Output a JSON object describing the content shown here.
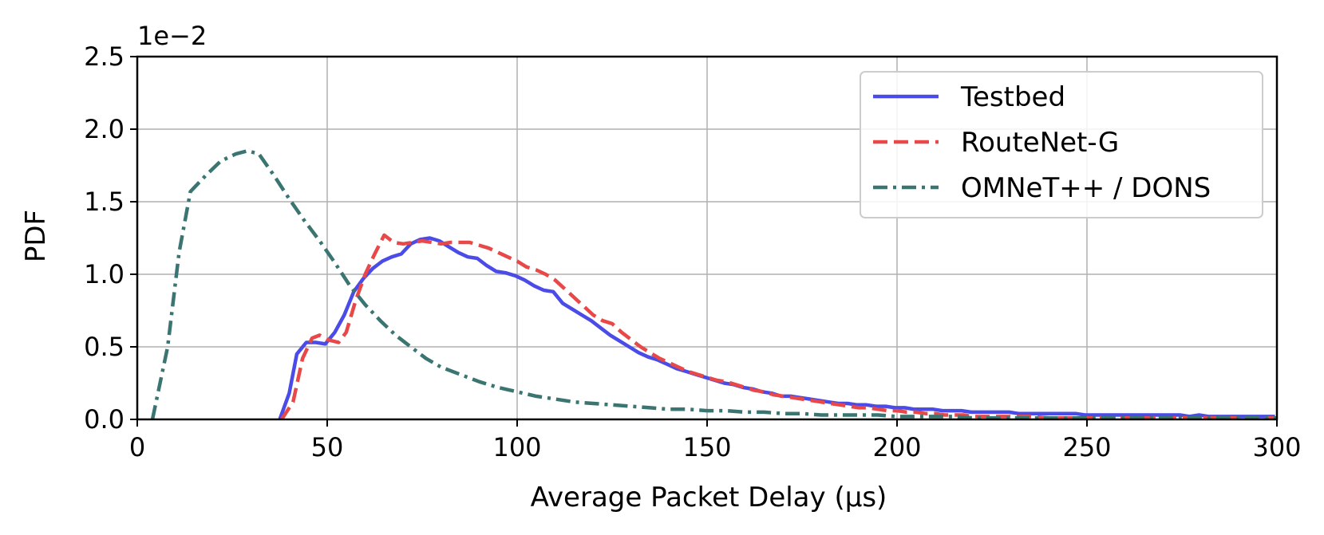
{
  "chart_data": {
    "type": "line",
    "title": "",
    "xlabel": "Average Packet Delay (µs)",
    "ylabel": "PDF",
    "y_offset_label": "1e−2",
    "xlim": [
      0,
      300
    ],
    "ylim": [
      0,
      2.5
    ],
    "xticks": [
      0,
      50,
      100,
      150,
      200,
      250,
      300
    ],
    "yticks": [
      0.0,
      0.5,
      1.0,
      1.5,
      2.0,
      2.5
    ],
    "xtick_labels": [
      "0",
      "50",
      "100",
      "150",
      "200",
      "250",
      "300"
    ],
    "ytick_labels": [
      "0.0",
      "0.5",
      "1.0",
      "1.5",
      "2.0",
      "2.5"
    ],
    "grid": true,
    "legend_position": "top-right",
    "series": [
      {
        "name": "Testbed",
        "color": "#4b4be8",
        "style": "solid",
        "points": [
          [
            37.5,
            0.0
          ],
          [
            40,
            0.18
          ],
          [
            42,
            0.45
          ],
          [
            44.5,
            0.53
          ],
          [
            47,
            0.53
          ],
          [
            49.5,
            0.52
          ],
          [
            52,
            0.6
          ],
          [
            54.5,
            0.72
          ],
          [
            57,
            0.88
          ],
          [
            59.5,
            0.97
          ],
          [
            62,
            1.04
          ],
          [
            64.5,
            1.09
          ],
          [
            67,
            1.12
          ],
          [
            69.5,
            1.14
          ],
          [
            72,
            1.21
          ],
          [
            74.5,
            1.24
          ],
          [
            77,
            1.25
          ],
          [
            79.5,
            1.23
          ],
          [
            82,
            1.19
          ],
          [
            84.5,
            1.15
          ],
          [
            87,
            1.12
          ],
          [
            89.5,
            1.11
          ],
          [
            92,
            1.06
          ],
          [
            94.5,
            1.02
          ],
          [
            97,
            1.01
          ],
          [
            99.5,
            0.99
          ],
          [
            102,
            0.96
          ],
          [
            104.5,
            0.92
          ],
          [
            107,
            0.89
          ],
          [
            109.5,
            0.88
          ],
          [
            112,
            0.8
          ],
          [
            114.5,
            0.76
          ],
          [
            117,
            0.72
          ],
          [
            119.5,
            0.68
          ],
          [
            122,
            0.63
          ],
          [
            124.5,
            0.58
          ],
          [
            127,
            0.54
          ],
          [
            129.5,
            0.5
          ],
          [
            132,
            0.46
          ],
          [
            134.5,
            0.43
          ],
          [
            137,
            0.41
          ],
          [
            139.5,
            0.38
          ],
          [
            142,
            0.35
          ],
          [
            144.5,
            0.33
          ],
          [
            147,
            0.31
          ],
          [
            149.5,
            0.29
          ],
          [
            152,
            0.27
          ],
          [
            154.5,
            0.25
          ],
          [
            157,
            0.24
          ],
          [
            159.5,
            0.22
          ],
          [
            162,
            0.21
          ],
          [
            164.5,
            0.19
          ],
          [
            167,
            0.18
          ],
          [
            169.5,
            0.16
          ],
          [
            172,
            0.16
          ],
          [
            174.5,
            0.15
          ],
          [
            177,
            0.14
          ],
          [
            179.5,
            0.13
          ],
          [
            182,
            0.12
          ],
          [
            184.5,
            0.11
          ],
          [
            187,
            0.11
          ],
          [
            189.5,
            0.1
          ],
          [
            192,
            0.1
          ],
          [
            194.5,
            0.09
          ],
          [
            197,
            0.09
          ],
          [
            199.5,
            0.08
          ],
          [
            202,
            0.08
          ],
          [
            204.5,
            0.07
          ],
          [
            207,
            0.07
          ],
          [
            209.5,
            0.07
          ],
          [
            212,
            0.06
          ],
          [
            214.5,
            0.06
          ],
          [
            217,
            0.06
          ],
          [
            219.5,
            0.05
          ],
          [
            222,
            0.05
          ],
          [
            224.5,
            0.05
          ],
          [
            227,
            0.05
          ],
          [
            229.5,
            0.05
          ],
          [
            232,
            0.04
          ],
          [
            234.5,
            0.04
          ],
          [
            237,
            0.04
          ],
          [
            239.5,
            0.04
          ],
          [
            242,
            0.04
          ],
          [
            244.5,
            0.04
          ],
          [
            247,
            0.04
          ],
          [
            249.5,
            0.03
          ],
          [
            252,
            0.03
          ],
          [
            254.5,
            0.03
          ],
          [
            257,
            0.03
          ],
          [
            259.5,
            0.03
          ],
          [
            262,
            0.03
          ],
          [
            264.5,
            0.03
          ],
          [
            267,
            0.03
          ],
          [
            269.5,
            0.03
          ],
          [
            272,
            0.03
          ],
          [
            274.5,
            0.03
          ],
          [
            277,
            0.02
          ],
          [
            279.5,
            0.03
          ],
          [
            282,
            0.02
          ],
          [
            284.5,
            0.02
          ],
          [
            287,
            0.02
          ],
          [
            289.5,
            0.02
          ],
          [
            292,
            0.02
          ],
          [
            294.5,
            0.02
          ],
          [
            297,
            0.02
          ],
          [
            299.5,
            0.02
          ]
        ]
      },
      {
        "name": "RouteNet-G",
        "color": "#e84848",
        "style": "dashed",
        "points": [
          [
            38,
            0.0
          ],
          [
            41,
            0.12
          ],
          [
            43.5,
            0.42
          ],
          [
            46,
            0.56
          ],
          [
            48,
            0.58
          ],
          [
            50,
            0.55
          ],
          [
            53,
            0.53
          ],
          [
            55,
            0.6
          ],
          [
            57.5,
            0.82
          ],
          [
            60,
            1.0
          ],
          [
            62.5,
            1.14
          ],
          [
            65,
            1.27
          ],
          [
            67.5,
            1.22
          ],
          [
            70,
            1.21
          ],
          [
            72.5,
            1.22
          ],
          [
            75,
            1.23
          ],
          [
            77.5,
            1.22
          ],
          [
            80,
            1.21
          ],
          [
            82.5,
            1.22
          ],
          [
            85,
            1.22
          ],
          [
            87.5,
            1.22
          ],
          [
            90,
            1.2
          ],
          [
            92.5,
            1.18
          ],
          [
            95,
            1.15
          ],
          [
            97.5,
            1.12
          ],
          [
            100,
            1.09
          ],
          [
            102.5,
            1.05
          ],
          [
            105,
            1.03
          ],
          [
            107.5,
            1.0
          ],
          [
            110,
            0.96
          ],
          [
            112.5,
            0.9
          ],
          [
            115,
            0.84
          ],
          [
            117.5,
            0.78
          ],
          [
            120,
            0.72
          ],
          [
            122.5,
            0.68
          ],
          [
            125,
            0.66
          ],
          [
            127.5,
            0.6
          ],
          [
            130,
            0.55
          ],
          [
            132.5,
            0.5
          ],
          [
            135,
            0.46
          ],
          [
            137.5,
            0.42
          ],
          [
            140,
            0.39
          ],
          [
            142.5,
            0.36
          ],
          [
            145,
            0.33
          ],
          [
            147.5,
            0.31
          ],
          [
            150,
            0.29
          ],
          [
            152.5,
            0.27
          ],
          [
            155,
            0.26
          ],
          [
            157.5,
            0.24
          ],
          [
            160,
            0.22
          ],
          [
            162.5,
            0.2
          ],
          [
            165,
            0.19
          ],
          [
            167.5,
            0.17
          ],
          [
            170,
            0.16
          ],
          [
            172.5,
            0.15
          ],
          [
            175,
            0.14
          ],
          [
            177.5,
            0.13
          ],
          [
            180,
            0.12
          ],
          [
            182.5,
            0.11
          ],
          [
            185,
            0.1
          ],
          [
            187.5,
            0.09
          ],
          [
            190,
            0.08
          ],
          [
            192.5,
            0.08
          ],
          [
            195,
            0.07
          ],
          [
            197.5,
            0.06
          ],
          [
            200,
            0.06
          ],
          [
            202.5,
            0.05
          ],
          [
            205,
            0.05
          ],
          [
            207.5,
            0.04
          ],
          [
            210,
            0.04
          ],
          [
            212.5,
            0.03
          ],
          [
            215,
            0.03
          ],
          [
            217.5,
            0.03
          ],
          [
            220,
            0.02
          ],
          [
            222.5,
            0.02
          ],
          [
            225,
            0.02
          ],
          [
            230,
            0.02
          ],
          [
            235,
            0.02
          ],
          [
            240,
            0.01
          ],
          [
            245,
            0.01
          ],
          [
            250,
            0.01
          ],
          [
            255,
            0.01
          ],
          [
            260,
            0.01
          ],
          [
            265,
            0.01
          ],
          [
            270,
            0.01
          ],
          [
            275,
            0.01
          ],
          [
            280,
            0.01
          ],
          [
            285,
            0.01
          ],
          [
            290,
            0.01
          ],
          [
            295,
            0.01
          ],
          [
            300,
            0.01
          ]
        ]
      },
      {
        "name": "OMNeT++ / DONS",
        "color": "#3a7571",
        "style": "dashdot",
        "points": [
          [
            4,
            0.0
          ],
          [
            8,
            0.5
          ],
          [
            11,
            1.15
          ],
          [
            14,
            1.57
          ],
          [
            18,
            1.68
          ],
          [
            22,
            1.78
          ],
          [
            26,
            1.83
          ],
          [
            29,
            1.85
          ],
          [
            32,
            1.83
          ],
          [
            36,
            1.68
          ],
          [
            40,
            1.52
          ],
          [
            44,
            1.37
          ],
          [
            48,
            1.23
          ],
          [
            52,
            1.08
          ],
          [
            56,
            0.92
          ],
          [
            60,
            0.79
          ],
          [
            64,
            0.68
          ],
          [
            68,
            0.58
          ],
          [
            72,
            0.5
          ],
          [
            76,
            0.42
          ],
          [
            80,
            0.36
          ],
          [
            85,
            0.31
          ],
          [
            90,
            0.26
          ],
          [
            95,
            0.22
          ],
          [
            100,
            0.19
          ],
          [
            105,
            0.16
          ],
          [
            110,
            0.14
          ],
          [
            115,
            0.12
          ],
          [
            120,
            0.11
          ],
          [
            125,
            0.1
          ],
          [
            130,
            0.09
          ],
          [
            135,
            0.08
          ],
          [
            140,
            0.07
          ],
          [
            145,
            0.07
          ],
          [
            150,
            0.06
          ],
          [
            155,
            0.06
          ],
          [
            160,
            0.05
          ],
          [
            165,
            0.05
          ],
          [
            170,
            0.04
          ],
          [
            175,
            0.04
          ],
          [
            180,
            0.03
          ],
          [
            185,
            0.03
          ],
          [
            190,
            0.03
          ],
          [
            195,
            0.03
          ],
          [
            200,
            0.02
          ],
          [
            205,
            0.02
          ],
          [
            210,
            0.02
          ],
          [
            215,
            0.02
          ],
          [
            220,
            0.01
          ],
          [
            230,
            0.01
          ],
          [
            240,
            0.01
          ],
          [
            250,
            0.01
          ],
          [
            260,
            0.01
          ],
          [
            270,
            0.01
          ],
          [
            280,
            0.01
          ],
          [
            290,
            0.01
          ],
          [
            300,
            0.01
          ]
        ]
      }
    ]
  }
}
